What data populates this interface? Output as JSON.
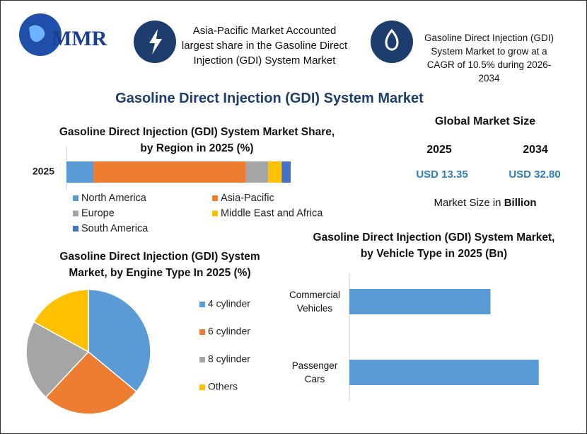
{
  "header": {
    "logo": "MMR",
    "callout_left": "Asia-Pacific Market Accounted largest share in the Gasoline Direct Injection (GDI) System Market",
    "callout_right": "Gasoline Direct Injection (GDI) System Market to grow at a CAGR of 10.5% during 2026-2034"
  },
  "title": "Gasoline Direct Injection (GDI) System Market",
  "market_size": {
    "title": "Global Market Size",
    "years": [
      "2025",
      "2034"
    ],
    "values": [
      "USD 13.35",
      "USD 32.80"
    ],
    "note": "Market Size in",
    "unit": "Billion"
  },
  "chart_data": [
    {
      "type": "stacked-bar",
      "title": "Gasoline Direct Injection (GDI) System Market Share, by Region in 2025 (%)",
      "categories": [
        "2025"
      ],
      "xlim": [
        0,
        100
      ],
      "series": [
        {
          "name": "North America",
          "color": "#5b9bd5",
          "values": [
            12
          ]
        },
        {
          "name": "Asia-Pacific",
          "color": "#ed7d31",
          "values": [
            68
          ]
        },
        {
          "name": "Europe",
          "color": "#a5a5a5",
          "values": [
            10
          ]
        },
        {
          "name": "Middle East and Africa",
          "color": "#ffc000",
          "values": [
            6
          ]
        },
        {
          "name": "South America",
          "color": "#4472c4",
          "values": [
            4
          ]
        }
      ]
    },
    {
      "type": "pie",
      "title": "Gasoline Direct Injection (GDI) System Market, by Engine Type In 2025 (%)",
      "categories": [
        "4 cylinder",
        "6 cylinder",
        "8 cylinder",
        "Others"
      ],
      "values": [
        36,
        26,
        21,
        17
      ],
      "colors": [
        "#5b9bd5",
        "#ed7d31",
        "#a5a5a5",
        "#ffc000"
      ]
    },
    {
      "type": "hbar",
      "title": "Gasoline Direct Injection (GDI) System Market, by Vehicle Type in 2025 (Bn)",
      "categories": [
        "Commercial Vehicles",
        "Passenger Cars"
      ],
      "values": [
        5.7,
        7.65
      ],
      "xlim": [
        0,
        8
      ],
      "color": "#5b9bd5"
    }
  ]
}
